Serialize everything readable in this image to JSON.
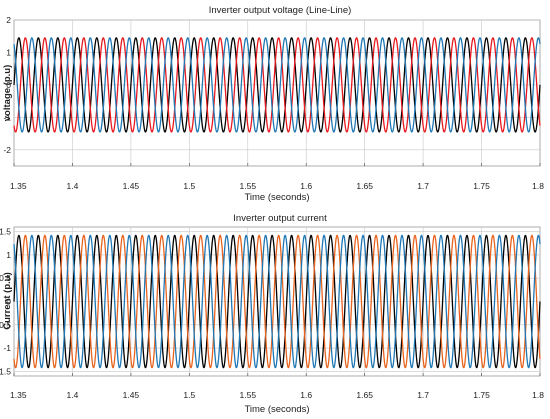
{
  "chart_data": [
    {
      "type": "line",
      "title": "Inverter output voltage (Line-Line)",
      "xlabel": "Time (seconds)",
      "ylabel": "voltage (p.u)",
      "xlim": [
        1.35,
        1.8
      ],
      "ylim": [
        -2.5,
        2
      ],
      "xticks": [
        "1.35",
        "1.4",
        "1.45",
        "1.5",
        "1.55",
        "1.6",
        "1.65",
        "1.7",
        "1.75",
        "1.8"
      ],
      "yticks": [
        "2",
        "1",
        "0",
        "-1",
        "-2"
      ],
      "yticks_values": [
        2,
        1,
        0,
        -1,
        -2
      ],
      "grid": true,
      "series": [
        {
          "color": "#000000",
          "amplitude": 1.45,
          "frequency_hz": 60,
          "phase_deg": 0
        },
        {
          "color": "#e8191e",
          "amplitude": 1.45,
          "frequency_hz": 60,
          "phase_deg": -120
        },
        {
          "color": "#1f77b4",
          "amplitude": 1.45,
          "frequency_hz": 60,
          "phase_deg": 120
        }
      ]
    },
    {
      "type": "line",
      "title": "Inverter output current",
      "xlabel": "Time (seconds)",
      "ylabel": "Current (p.u)",
      "xlim": [
        1.35,
        1.8
      ],
      "ylim": [
        -1.6,
        1.6
      ],
      "xticks": [
        "1.35",
        "1.4",
        "1.45",
        "1.5",
        "1.55",
        "1.6",
        "1.65",
        "1.7",
        "1.75",
        "1.8"
      ],
      "yticks": [
        "1.5",
        "1",
        "0.5",
        "0",
        "-0.5",
        "-1",
        "-1.5"
      ],
      "yticks_values": [
        1.5,
        1,
        0.5,
        0,
        -0.5,
        -1,
        -1.5
      ],
      "grid": true,
      "series": [
        {
          "color": "#000000",
          "amplitude": 1.42,
          "frequency_hz": 60,
          "phase_deg": 0
        },
        {
          "color": "#e8641e",
          "amplitude": 1.42,
          "frequency_hz": 60,
          "phase_deg": -120
        },
        {
          "color": "#1f77b4",
          "amplitude": 1.42,
          "frequency_hz": 60,
          "phase_deg": 120
        }
      ]
    }
  ]
}
